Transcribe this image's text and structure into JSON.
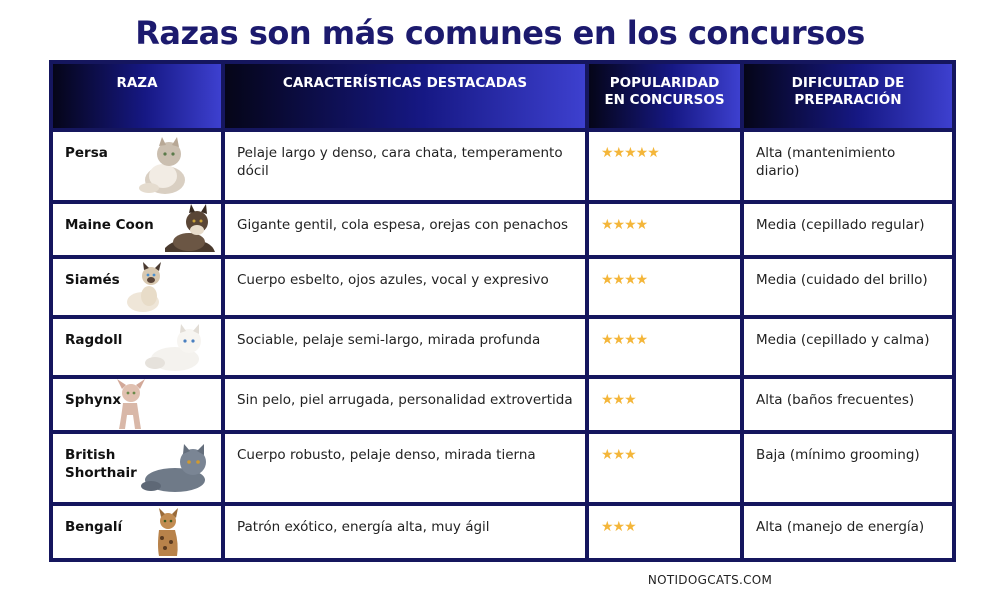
{
  "title": "Razas son más comunes en los concursos",
  "headers": [
    "RAZA",
    "CARACTERÍSTICAS DESTACADAS",
    "POPULARIDAD EN CONCURSOS",
    "DIFICULTAD DE PREPARACIÓN"
  ],
  "star_color": "#f4b63a",
  "header_color": "#15165e",
  "rows": [
    {
      "breed": "Persa",
      "features": "Pelaje largo y denso, cara chata, temperamento dócil",
      "stars": "★★★★★",
      "rating": 5,
      "difficulty": "Alta (mantenimiento diario)",
      "icon": "persian-cat-photo"
    },
    {
      "breed": "Maine Coon",
      "features": "Gigante gentil, cola espesa, orejas con penachos",
      "stars": "★★★★",
      "rating": 4,
      "difficulty": "Media (cepillado regular)",
      "icon": "maine-coon-cat-photo"
    },
    {
      "breed": "Siamés",
      "features": "Cuerpo esbelto, ojos azules, vocal y expresivo",
      "stars": "★★★★",
      "rating": 4,
      "difficulty": "Media (cuidado del brillo)",
      "icon": "siamese-cat-photo"
    },
    {
      "breed": "Ragdoll",
      "features": "Sociable, pelaje semi-largo, mirada profunda",
      "stars": "★★★★",
      "rating": 4,
      "difficulty": "Media (cepillado y calma)",
      "icon": "ragdoll-cat-photo"
    },
    {
      "breed": "Sphynx",
      "features": "Sin pelo, piel arrugada, personalidad extrovertida",
      "stars": "★★★",
      "rating": 3,
      "difficulty": "Alta (baños frecuentes)",
      "icon": "sphynx-cat-photo"
    },
    {
      "breed": "British Shorthair",
      "features": "Cuerpo robusto, pelaje denso, mirada tierna",
      "stars": "★★★",
      "rating": 3,
      "difficulty": "Baja (mínimo grooming)",
      "icon": "british-shorthair-cat-photo"
    },
    {
      "breed": "Bengalí",
      "features": "Patrón exótico, energía alta, muy ágil",
      "stars": "★★★",
      "rating": 3,
      "difficulty": "Alta (manejo de energía)",
      "icon": "bengal-cat-photo"
    }
  ],
  "footer": "NOTIDOGCATS.COM"
}
